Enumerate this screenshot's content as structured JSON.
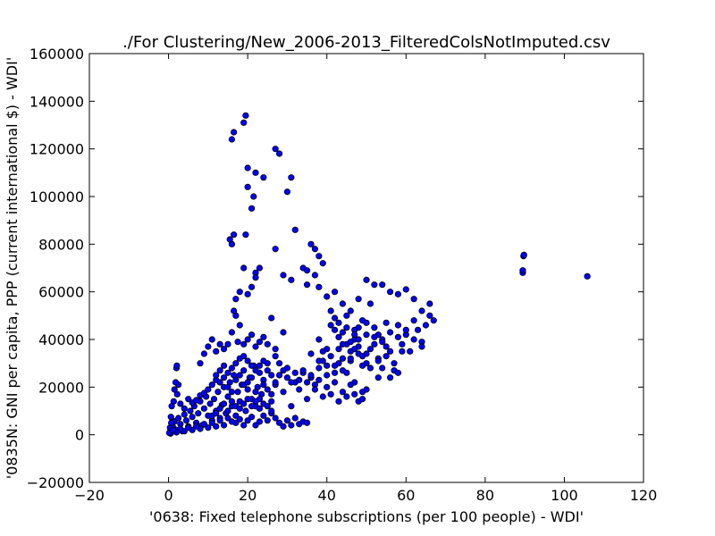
{
  "chart_data": {
    "type": "scatter",
    "title": "./For Clustering/New_2006-2013_FilteredColsNotImputed.csv",
    "xlabel": "'0638: Fixed telephone subscriptions  (per 100 people) - WDI'",
    "ylabel": "'0835N: GNI per capita, PPP  (current international $) - WDI'",
    "xlim": [
      -20,
      120
    ],
    "ylim": [
      -20000,
      160000
    ],
    "xticks": [
      "−20",
      "0",
      "20",
      "40",
      "60",
      "80",
      "100",
      "120"
    ],
    "yticks": [
      "−20000",
      "0",
      "20000",
      "40000",
      "60000",
      "80000",
      "100000",
      "120000",
      "140000",
      "160000"
    ],
    "grid": false,
    "marker_color": "#0000ff",
    "marker_edge": "#000000",
    "points": [
      [
        0.3,
        1000
      ],
      [
        0.5,
        2500
      ],
      [
        0.8,
        4000
      ],
      [
        1.0,
        6000
      ],
      [
        0.6,
        7500
      ],
      [
        1.2,
        3000
      ],
      [
        1.5,
        5500
      ],
      [
        2.0,
        2000
      ],
      [
        2.5,
        7000
      ],
      [
        3.0,
        4500
      ],
      [
        3.5,
        1500
      ],
      [
        4.0,
        8500
      ],
      [
        4.5,
        6000
      ],
      [
        5.0,
        3500
      ],
      [
        5.5,
        10000
      ],
      [
        6.0,
        7500
      ],
      [
        6.5,
        12000
      ],
      [
        7.0,
        5000
      ],
      [
        7.5,
        9000
      ],
      [
        8.0,
        14000
      ],
      [
        8.5,
        4000
      ],
      [
        9.0,
        11000
      ],
      [
        9.5,
        16000
      ],
      [
        10.0,
        8000
      ],
      [
        10.5,
        13000
      ],
      [
        11.0,
        6000
      ],
      [
        11.5,
        15000
      ],
      [
        12.0,
        10000
      ],
      [
        12.5,
        18000
      ],
      [
        13.0,
        7000
      ],
      [
        13.5,
        12500
      ],
      [
        14.0,
        20000
      ],
      [
        14.5,
        9000
      ],
      [
        15.0,
        16000
      ],
      [
        15.5,
        22000
      ],
      [
        16.0,
        12000
      ],
      [
        16.5,
        25000
      ],
      [
        17.0,
        8000
      ],
      [
        17.5,
        18000
      ],
      [
        18.0,
        14000
      ],
      [
        18.5,
        21000
      ],
      [
        19.0,
        27000
      ],
      [
        19.5,
        10000
      ],
      [
        20.0,
        19000
      ],
      [
        20.5,
        24000
      ],
      [
        21.0,
        15000
      ],
      [
        21.5,
        29000
      ],
      [
        22.0,
        12000
      ],
      [
        22.5,
        20000
      ],
      [
        23.0,
        26000
      ],
      [
        23.5,
        17000
      ],
      [
        24.0,
        23000
      ],
      [
        25.0,
        30000
      ],
      [
        26.0,
        14000
      ],
      [
        27.0,
        21000
      ],
      [
        28.0,
        25000
      ],
      [
        29.0,
        18000
      ],
      [
        30.0,
        28000
      ],
      [
        31.0,
        12000
      ],
      [
        32.0,
        22000
      ],
      [
        33.0,
        19000
      ],
      [
        34.0,
        26000
      ],
      [
        35.0,
        15000
      ],
      [
        36.0,
        24000
      ],
      [
        37.0,
        21000
      ],
      [
        38.0,
        28000
      ],
      [
        39.0,
        31000
      ],
      [
        40.0,
        25000
      ],
      [
        41.0,
        33000
      ],
      [
        42.0,
        29000
      ],
      [
        43.0,
        36000
      ],
      [
        44.0,
        27000
      ],
      [
        45.0,
        38000
      ],
      [
        46.0,
        31000
      ],
      [
        47.0,
        40000
      ],
      [
        48.0,
        34000
      ],
      [
        49.0,
        29000
      ],
      [
        50.0,
        42000
      ],
      [
        51.0,
        36000
      ],
      [
        52.0,
        45000
      ],
      [
        53.0,
        32000
      ],
      [
        54.0,
        40000
      ],
      [
        55.0,
        37000
      ],
      [
        56.0,
        43000
      ],
      [
        57.0,
        30000
      ],
      [
        58.0,
        46000
      ],
      [
        59.0,
        38000
      ],
      [
        60.0,
        42000
      ],
      [
        61.0,
        35000
      ],
      [
        62.0,
        48000
      ],
      [
        63.0,
        44000
      ],
      [
        64.0,
        39000
      ],
      [
        65.0,
        46000
      ],
      [
        66.0,
        50000
      ],
      [
        67.0,
        48000
      ],
      [
        38.0,
        40000
      ],
      [
        40.0,
        36000
      ],
      [
        42.0,
        44000
      ],
      [
        44.0,
        38000
      ],
      [
        46.0,
        32000
      ],
      [
        48.0,
        45000
      ],
      [
        50.0,
        30000
      ],
      [
        52.0,
        38000
      ],
      [
        45.0,
        26000
      ],
      [
        47.0,
        22000
      ],
      [
        49.0,
        18000
      ],
      [
        51.0,
        28000
      ],
      [
        53.0,
        24000
      ],
      [
        55.0,
        33000
      ],
      [
        57.0,
        27000
      ],
      [
        59.0,
        35000
      ],
      [
        36.0,
        34000
      ],
      [
        38.0,
        31000
      ],
      [
        40.0,
        29000
      ],
      [
        42.0,
        26000
      ],
      [
        44.0,
        32000
      ],
      [
        46.0,
        35000
      ],
      [
        48.0,
        40000
      ],
      [
        50.0,
        34000
      ],
      [
        41.0,
        52000
      ],
      [
        43.0,
        47000
      ],
      [
        45.0,
        50000
      ],
      [
        47.0,
        44000
      ],
      [
        49.0,
        48000
      ],
      [
        51.0,
        55000
      ],
      [
        53.0,
        42000
      ],
      [
        55.0,
        47000
      ],
      [
        38.0,
        62000
      ],
      [
        40.0,
        58000
      ],
      [
        42.0,
        60000
      ],
      [
        44.0,
        55000
      ],
      [
        46.0,
        52000
      ],
      [
        48.0,
        57000
      ],
      [
        50.0,
        65000
      ],
      [
        52.0,
        63000
      ],
      [
        54.0,
        63000
      ],
      [
        56.0,
        60000
      ],
      [
        58.0,
        59000
      ],
      [
        60.0,
        61000
      ],
      [
        62.0,
        57000
      ],
      [
        64.0,
        52000
      ],
      [
        66.0,
        55000
      ],
      [
        34.0,
        70000
      ],
      [
        35.0,
        69000
      ],
      [
        36.0,
        80000
      ],
      [
        37.0,
        78000
      ],
      [
        38.0,
        75000
      ],
      [
        39.0,
        72000
      ],
      [
        37.0,
        67000
      ],
      [
        35.0,
        63000
      ],
      [
        31.0,
        65000
      ],
      [
        32.0,
        86000
      ],
      [
        30.0,
        102000
      ],
      [
        31.0,
        108000
      ],
      [
        28.0,
        118000
      ],
      [
        27.0,
        120000
      ],
      [
        27.0,
        78000
      ],
      [
        29.0,
        67000
      ],
      [
        23.0,
        70000
      ],
      [
        22.0,
        68000
      ],
      [
        21.0,
        62000
      ],
      [
        20.0,
        59000
      ],
      [
        19.0,
        70000
      ],
      [
        22.0,
        66000
      ],
      [
        18.0,
        60000
      ],
      [
        17.0,
        57000
      ],
      [
        16.0,
        80000
      ],
      [
        15.5,
        82000
      ],
      [
        16.5,
        84000
      ],
      [
        19.5,
        84000
      ],
      [
        20.0,
        104000
      ],
      [
        21.0,
        95000
      ],
      [
        22.0,
        110000
      ],
      [
        20.0,
        112000
      ],
      [
        24.0,
        108000
      ],
      [
        21.5,
        100000
      ],
      [
        16.0,
        124000
      ],
      [
        16.5,
        127000
      ],
      [
        19.0,
        131000
      ],
      [
        19.5,
        134000
      ],
      [
        15.0,
        38000
      ],
      [
        16.0,
        43000
      ],
      [
        17.0,
        50000
      ],
      [
        18.0,
        46000
      ],
      [
        16.5,
        52000
      ],
      [
        14.0,
        36000
      ],
      [
        13.0,
        38000
      ],
      [
        12.0,
        35000
      ],
      [
        11.0,
        40000
      ],
      [
        10.0,
        37000
      ],
      [
        9.0,
        34000
      ],
      [
        8.0,
        30000
      ],
      [
        17.5,
        39000
      ],
      [
        19.0,
        38000
      ],
      [
        21.0,
        42000
      ],
      [
        22.0,
        37000
      ],
      [
        24.0,
        41000
      ],
      [
        25.0,
        38000
      ],
      [
        27.0,
        36000
      ],
      [
        29.0,
        43000
      ],
      [
        26.0,
        49000
      ],
      [
        20.0,
        40000
      ],
      [
        23.0,
        39000
      ],
      [
        2.0,
        28000
      ],
      [
        2.1,
        29000
      ],
      [
        2.5,
        21000
      ],
      [
        1.5,
        19000
      ],
      [
        1.8,
        22000
      ],
      [
        2.2,
        17000
      ],
      [
        1.3,
        14000
      ],
      [
        0.8,
        12000
      ],
      [
        3.0,
        13000
      ],
      [
        4.0,
        11000
      ],
      [
        5.0,
        15000
      ],
      [
        6.0,
        13500
      ],
      [
        7.0,
        14500
      ],
      [
        8.0,
        16500
      ],
      [
        9.0,
        17500
      ],
      [
        10.0,
        19000
      ],
      [
        11.0,
        21000
      ],
      [
        12.0,
        23000
      ],
      [
        13.0,
        22000
      ],
      [
        14.0,
        24000
      ],
      [
        15.0,
        26000
      ],
      [
        16.0,
        28000
      ],
      [
        17.0,
        30000
      ],
      [
        18.0,
        32000
      ],
      [
        19.0,
        33000
      ],
      [
        20.0,
        31000
      ],
      [
        21.0,
        29000
      ],
      [
        22.0,
        27000
      ],
      [
        23.0,
        29000
      ],
      [
        24.0,
        31000
      ],
      [
        25.0,
        27000
      ],
      [
        26.0,
        25000
      ],
      [
        27.0,
        33000
      ],
      [
        28.0,
        30000
      ],
      [
        29.0,
        27000
      ],
      [
        30.0,
        24000
      ],
      [
        31.0,
        22000
      ],
      [
        32.0,
        26000
      ],
      [
        33.0,
        23000
      ],
      [
        34.0,
        27000
      ],
      [
        35.0,
        22000
      ],
      [
        36.0,
        25000
      ],
      [
        37.0,
        19000
      ],
      [
        38.0,
        23000
      ],
      [
        39.0,
        16000
      ],
      [
        40.0,
        20000
      ],
      [
        41.0,
        17000
      ],
      [
        42.0,
        22000
      ],
      [
        43.0,
        14000
      ],
      [
        44.0,
        18000
      ],
      [
        45.0,
        16000
      ],
      [
        46.0,
        21000
      ],
      [
        47.0,
        17000
      ],
      [
        48.0,
        14000
      ],
      [
        49.0,
        15000
      ],
      [
        50.0,
        19000
      ],
      [
        28.0,
        5000
      ],
      [
        29.0,
        3500
      ],
      [
        30.0,
        6000
      ],
      [
        31.0,
        4000
      ],
      [
        32.0,
        7000
      ],
      [
        33.0,
        4500
      ],
      [
        34.0,
        5500
      ],
      [
        35.0,
        5000
      ],
      [
        24.0,
        8000
      ],
      [
        25.0,
        6000
      ],
      [
        26.0,
        9000
      ],
      [
        27.0,
        7000
      ],
      [
        22.0,
        4000
      ],
      [
        23.0,
        5500
      ],
      [
        20.0,
        6000
      ],
      [
        21.0,
        7500
      ],
      [
        17.0,
        5000
      ],
      [
        18.0,
        6500
      ],
      [
        19.0,
        4000
      ],
      [
        15.0,
        7000
      ],
      [
        16.0,
        5500
      ],
      [
        14.0,
        4000
      ],
      [
        13.0,
        6000
      ],
      [
        12.0,
        3500
      ],
      [
        11.0,
        5000
      ],
      [
        10.0,
        3000
      ],
      [
        9.0,
        4500
      ],
      [
        8.0,
        2500
      ],
      [
        7.0,
        3500
      ],
      [
        6.0,
        2000
      ],
      [
        5.0,
        3000
      ],
      [
        4.0,
        1500
      ],
      [
        3.0,
        2500
      ],
      [
        2.0,
        1000
      ],
      [
        1.0,
        1500
      ],
      [
        0.5,
        500
      ],
      [
        0.2,
        800
      ],
      [
        0.4,
        3000
      ],
      [
        0.7,
        5000
      ],
      [
        1.1,
        2000
      ],
      [
        89.5,
        68000
      ],
      [
        89.5,
        69000
      ],
      [
        89.7,
        75000
      ],
      [
        89.8,
        75500
      ],
      [
        105.8,
        66500
      ],
      [
        12.0,
        25000
      ],
      [
        13.0,
        27000
      ],
      [
        14.0,
        29000
      ],
      [
        15.0,
        20000
      ],
      [
        16.0,
        18000
      ],
      [
        17.0,
        23000
      ],
      [
        18.0,
        25000
      ],
      [
        19.0,
        21000
      ],
      [
        20.0,
        22000
      ],
      [
        21.0,
        24000
      ],
      [
        22.0,
        18000
      ],
      [
        23.0,
        15000
      ],
      [
        24.0,
        21000
      ],
      [
        25.0,
        19000
      ],
      [
        26.0,
        17000
      ],
      [
        27.0,
        22000
      ],
      [
        11.0,
        8000
      ],
      [
        12.0,
        9000
      ],
      [
        13.0,
        11000
      ],
      [
        14.0,
        13000
      ],
      [
        15.0,
        10000
      ],
      [
        16.0,
        14000
      ],
      [
        17.0,
        12000
      ],
      [
        18.0,
        11000
      ],
      [
        19.0,
        13000
      ],
      [
        20.0,
        15000
      ],
      [
        21.0,
        12000
      ],
      [
        22.0,
        14000
      ],
      [
        23.0,
        11000
      ],
      [
        24.0,
        13000
      ],
      [
        25.0,
        12000
      ],
      [
        26.0,
        10000
      ],
      [
        41.0,
        46000
      ],
      [
        42.0,
        49000
      ],
      [
        43.0,
        41000
      ],
      [
        44.0,
        43000
      ],
      [
        45.0,
        45000
      ],
      [
        46.0,
        39000
      ],
      [
        47.0,
        42000
      ],
      [
        48.0,
        37000
      ],
      [
        50.0,
        47000
      ],
      [
        52.0,
        41000
      ],
      [
        54.0,
        39000
      ],
      [
        56.0,
        35000
      ],
      [
        58.0,
        41000
      ],
      [
        60.0,
        44000
      ],
      [
        62.0,
        40000
      ],
      [
        64.0,
        37000
      ],
      [
        54.0,
        28000
      ],
      [
        56.0,
        24000
      ],
      [
        58.0,
        26000
      ],
      [
        53.0,
        31000
      ],
      [
        49.0,
        33000
      ],
      [
        47.0,
        36000
      ],
      [
        43.0,
        30000
      ],
      [
        39.0,
        35000
      ]
    ]
  }
}
